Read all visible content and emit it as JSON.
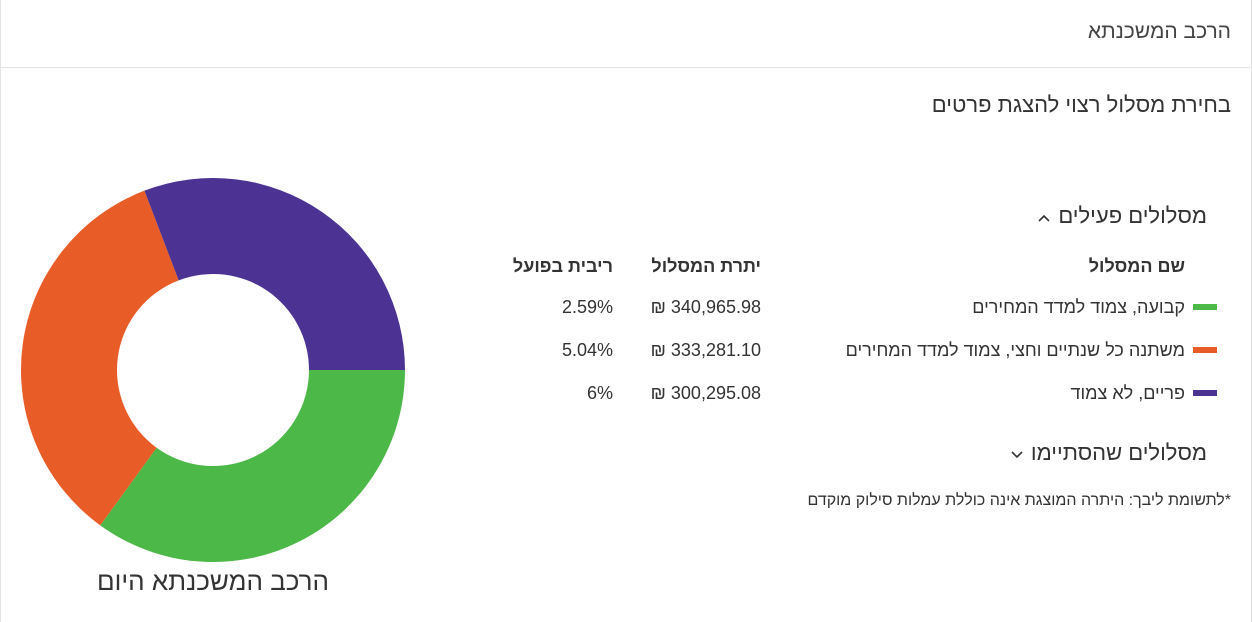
{
  "header": {
    "title": "הרכב המשכנתא"
  },
  "subtitle": "בחירת מסלול רצוי להצגת פרטים",
  "active_tracks": {
    "heading": "מסלולים פעילים",
    "chevron_icon": "chevron-up-icon",
    "columns": {
      "name": "שם המסלול",
      "balance": "יתרת המסלול",
      "rate": "ריבית בפועל"
    },
    "rows": [
      {
        "name": "קבועה, צמוד למדד המחירים",
        "balance": "340,965.98 ₪",
        "rate": "2.59%",
        "color": "#4cb848"
      },
      {
        "name": "משתנה כל שנתיים וחצי, צמוד למדד המחירים",
        "balance": "333,281.10 ₪",
        "rate": "5.04%",
        "color": "#e85d27"
      },
      {
        "name": "פריים, לא צמוד",
        "balance": "300,295.08 ₪",
        "rate": "6%",
        "color": "#4b3293"
      }
    ]
  },
  "ended_tracks": {
    "heading": "מסלולים שהסתיימו",
    "chevron_icon": "chevron-down-icon"
  },
  "disclaimer": "*לתשומת ליבך: היתרה המוצגת אינה כוללת עמלות סילוק מוקדם",
  "chart_data": {
    "type": "pie",
    "title": "הרכב המשכנתא היום",
    "donut": true,
    "categories": [
      "קבועה, צמוד למדד המחירים",
      "משתנה כל שנתיים וחצי, צמוד למדד המחירים",
      "פריים, לא צמוד"
    ],
    "values": [
      340965.98,
      333281.1,
      300295.08
    ],
    "colors": [
      "#4cb848",
      "#e85d27",
      "#4b3293"
    ]
  }
}
